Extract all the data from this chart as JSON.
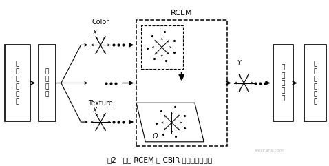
{
  "fig_width": 4.78,
  "fig_height": 2.41,
  "dpi": 100,
  "title": "图2   基于 RCEM 的 CBIR 系统的工作流程",
  "box1_text": "载\n入\n输\n入\n图\n像",
  "box2_text": "特\n征\n提\n取",
  "box3_text": "相\n似\n度\n对\n比",
  "box4_text": "图\n像\n检\n索\n结\n果",
  "color_label": "Color",
  "texture_label": "Texture",
  "rcem_label": "RCEM",
  "x_label": "X",
  "y_label": "Y",
  "watermark": "elecFans.com"
}
